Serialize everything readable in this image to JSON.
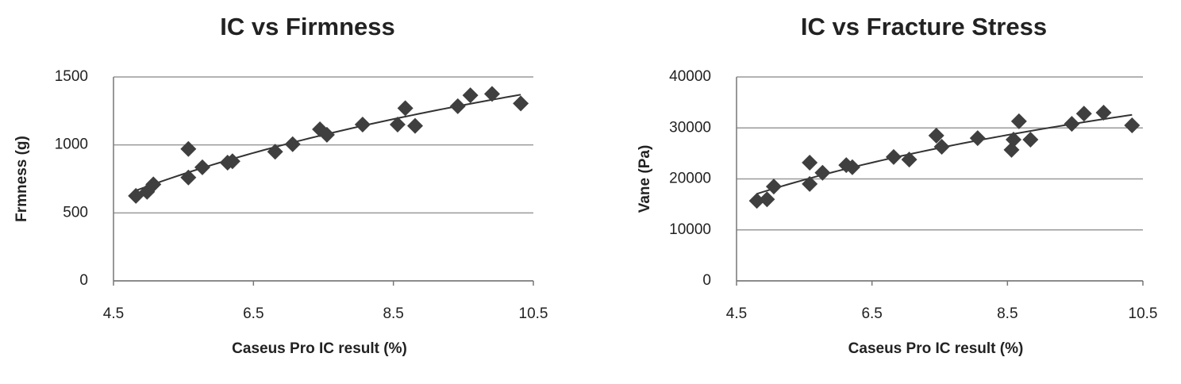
{
  "chart_data": [
    {
      "type": "scatter",
      "title": "IC vs Firmness",
      "x_label": "Caseus Pro IC result (%)",
      "y_label": "Frmness (g)",
      "color": "#3f3f3f",
      "trendline": "logarithmic",
      "grid": true,
      "x": [
        4.82,
        4.98,
        5.07,
        5.57,
        5.57,
        5.77,
        6.13,
        6.2,
        6.81,
        7.06,
        7.45,
        7.55,
        8.06,
        8.56,
        8.67,
        8.81,
        9.42,
        9.6,
        9.91,
        10.32
      ],
      "values": [
        625,
        655,
        710,
        970,
        760,
        835,
        870,
        880,
        950,
        1005,
        1115,
        1075,
        1150,
        1150,
        1270,
        1140,
        1285,
        1365,
        1375,
        1305
      ],
      "xlim": [
        4.5,
        10.5
      ],
      "xticks": [
        4.5,
        6.5,
        8.5,
        10.5
      ],
      "ylim": [
        0,
        1500
      ],
      "yticks": [
        0,
        500,
        1000,
        1500
      ]
    },
    {
      "type": "scatter",
      "title": "IC vs Fracture Stress",
      "x_label": "Caseus Pro IC result (%)",
      "y_label": "Vane (Pa)",
      "color": "#3f3f3f",
      "trendline": "logarithmic",
      "grid": true,
      "x": [
        4.8,
        4.95,
        5.05,
        5.58,
        5.58,
        5.77,
        6.12,
        6.21,
        6.82,
        7.05,
        7.45,
        7.53,
        8.06,
        8.56,
        8.59,
        8.67,
        8.84,
        9.45,
        9.63,
        9.92,
        10.34
      ],
      "values": [
        15700,
        16000,
        18500,
        23200,
        19000,
        21200,
        22700,
        22300,
        24300,
        23800,
        28500,
        26300,
        28000,
        25700,
        27700,
        31300,
        27700,
        30800,
        32800,
        33000,
        30500
      ],
      "xlim": [
        4.5,
        10.5
      ],
      "xticks": [
        4.5,
        6.5,
        8.5,
        10.5
      ],
      "ylim": [
        0,
        40000
      ],
      "yticks": [
        0,
        10000,
        20000,
        30000,
        40000
      ]
    }
  ]
}
